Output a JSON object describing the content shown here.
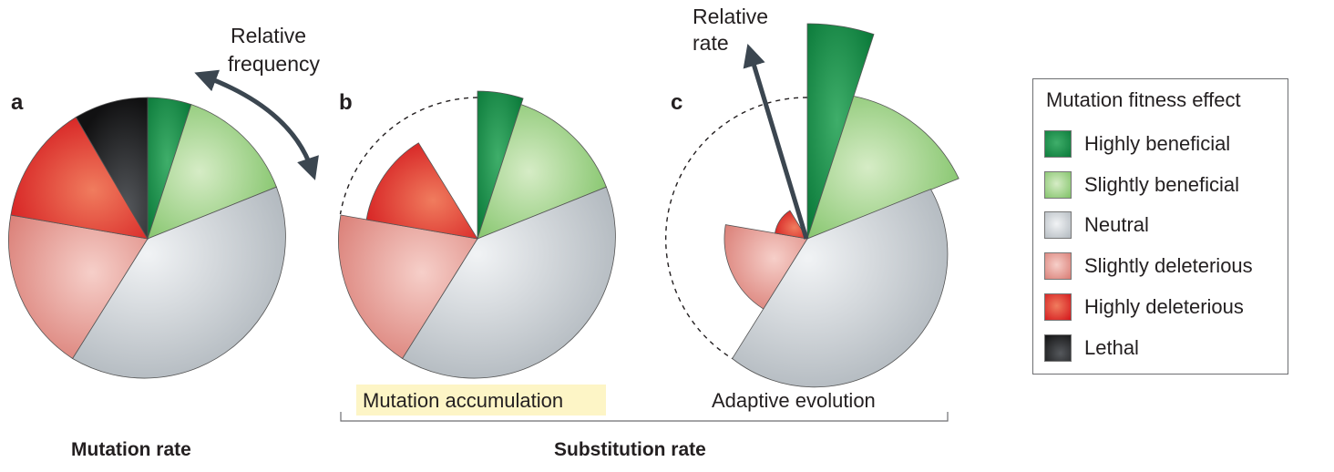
{
  "figure": {
    "panels": [
      {
        "letter": "a"
      },
      {
        "letter": "b",
        "caption": "Mutation accumulation"
      },
      {
        "letter": "c",
        "caption": "Adaptive evolution"
      }
    ],
    "annotations": {
      "relative_frequency_line1": "Relative",
      "relative_frequency_line2": "frequency",
      "relative_rate_line1": "Relative",
      "relative_rate_line2": "rate"
    },
    "bottom_labels": {
      "mutation_rate": "Mutation rate",
      "substitution_rate": "Substitution rate"
    }
  },
  "legend": {
    "title": "Mutation fitness effect",
    "items": [
      {
        "label": "Highly beneficial",
        "color": "#138a45"
      },
      {
        "label": "Slightly beneficial",
        "color": "#8cc873"
      },
      {
        "label": "Neutral",
        "color": "#c4cacf"
      },
      {
        "label": "Slightly deleterious",
        "color": "#e8a09b"
      },
      {
        "label": "Highly deleterious",
        "color": "#e2312d"
      },
      {
        "label": "Lethal",
        "color": "#2a2a2c"
      }
    ]
  },
  "colors": {
    "highlight": "#fdf5c6",
    "arrow": "#3b4650",
    "dashed": "#231f20"
  }
}
